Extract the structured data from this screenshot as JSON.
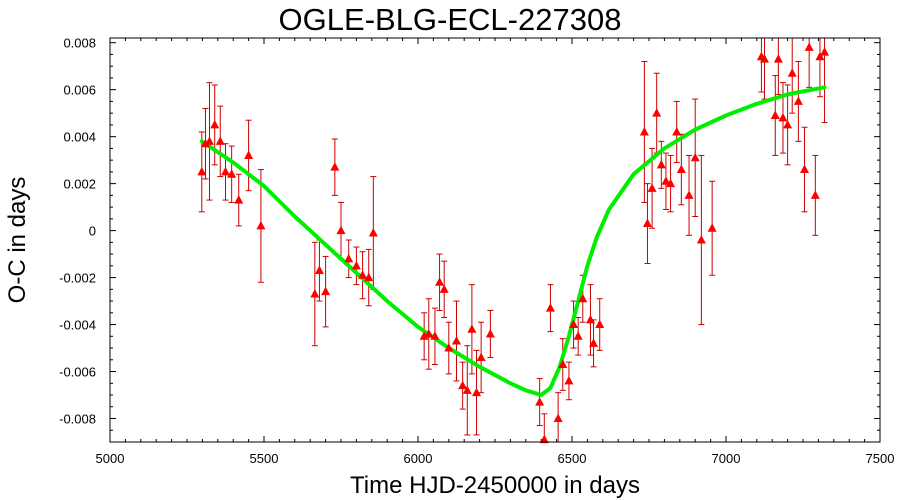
{
  "chart_data": {
    "type": "scatter",
    "title": "OGLE-BLG-ECL-227308",
    "xlabel": "Time HJD-2450000 in days",
    "ylabel": "O-C in days",
    "xlim": [
      5000,
      7500
    ],
    "ylim": [
      -0.009,
      0.0082
    ],
    "x_ticks": [
      5000,
      5500,
      6000,
      6500,
      7000,
      7500
    ],
    "x_tick_labels": [
      "5000",
      "5500",
      "6000",
      "6500",
      "7000",
      "7500"
    ],
    "y_ticks": [
      -0.008,
      -0.006,
      -0.004,
      -0.002,
      0,
      0.002,
      0.004,
      0.006,
      0.008
    ],
    "y_tick_labels": [
      "-0.008",
      "-0.006",
      "-0.004",
      "-0.002",
      "0",
      "0.002",
      "0.004",
      "0.006",
      "0.008"
    ],
    "grid": false,
    "legend": "none",
    "colors": {
      "points": "#ff0000",
      "errorbars": "#cc0000",
      "fit": "#00ee00",
      "axes": "#000000"
    },
    "series": [
      {
        "kind": "points_with_errorbars",
        "marker": "triangle",
        "x": [
          5298,
          5310,
          5323,
          5340,
          5358,
          5375,
          5395,
          5418,
          5450,
          5490,
          5665,
          5680,
          5700,
          5730,
          5750,
          5775,
          5800,
          5820,
          5840,
          5855,
          6020,
          6035,
          6055,
          6070,
          6085,
          6100,
          6125,
          6145,
          6160,
          6175,
          6190,
          6205,
          6235,
          6395,
          6410,
          6430,
          6455,
          6470,
          6490,
          6505,
          6520,
          6535,
          6560,
          6570,
          6590,
          6735,
          6745,
          6760,
          6775,
          6790,
          6805,
          6820,
          6840,
          6855,
          6880,
          6900,
          6920,
          6955,
          7115,
          7125,
          7160,
          7170,
          7185,
          7200,
          7215,
          7235,
          7255,
          7270,
          7290,
          7305,
          7320
        ],
        "y": [
          0.0025,
          0.0037,
          0.0038,
          0.0045,
          0.0038,
          0.0025,
          0.0024,
          0.0013,
          0.0032,
          0.0002,
          -0.0027,
          -0.0017,
          -0.0026,
          0.0027,
          0.0,
          -0.0012,
          -0.0015,
          -0.0019,
          -0.002,
          -0.0001,
          -0.0045,
          -0.0044,
          -0.0045,
          -0.0022,
          -0.0025,
          -0.005,
          -0.0047,
          -0.0066,
          -0.0068,
          -0.0042,
          -0.0069,
          -0.0054,
          -0.0044,
          -0.0073,
          -0.0089,
          -0.0033,
          -0.008,
          -0.0057,
          -0.0064,
          -0.004,
          -0.0045,
          -0.0029,
          -0.0038,
          -0.0048,
          -0.004,
          0.0042,
          0.0003,
          0.0018,
          0.005,
          0.0028,
          0.0021,
          0.002,
          0.0042,
          0.0026,
          0.0015,
          0.0031,
          -0.0004,
          0.0001,
          0.0074,
          0.0073,
          0.0049,
          0.0073,
          0.0048,
          0.0045,
          0.0067,
          0.0055,
          0.0026,
          0.0078,
          0.0015,
          0.0074,
          0.0076
        ],
        "err": [
          0.0017,
          0.0015,
          0.0025,
          0.0017,
          0.0015,
          0.0012,
          0.0012,
          0.0011,
          0.0015,
          0.0024,
          0.0022,
          0.0013,
          0.0015,
          0.0012,
          0.0012,
          0.0008,
          0.0008,
          0.001,
          0.0012,
          0.0024,
          0.001,
          0.0015,
          0.0012,
          0.0012,
          0.0012,
          0.0011,
          0.0017,
          0.001,
          0.0019,
          0.0019,
          0.0018,
          0.0015,
          0.001,
          0.001,
          0.0011,
          0.001,
          0.0011,
          0.0011,
          0.0008,
          0.001,
          0.0008,
          0.001,
          0.0015,
          0.001,
          0.0011,
          0.003,
          0.0017,
          0.0017,
          0.0017,
          0.001,
          0.0012,
          0.0012,
          0.0013,
          0.0015,
          0.0017,
          0.0025,
          0.0036,
          0.002,
          0.0015,
          0.0017,
          0.0017,
          0.0015,
          0.0015,
          0.0017,
          0.0017,
          0.0017,
          0.0018,
          0.0017,
          0.0017,
          0.0017,
          0.003
        ]
      },
      {
        "kind": "fit_line",
        "x": [
          5298,
          5400,
          5500,
          5600,
          5700,
          5800,
          5900,
          6000,
          6100,
          6200,
          6300,
          6350,
          6400,
          6430,
          6460,
          6490,
          6520,
          6550,
          6580,
          6620,
          6700,
          6800,
          6900,
          7000,
          7100,
          7200,
          7320
        ],
        "y": [
          0.0038,
          0.0029,
          0.0019,
          0.0006,
          -0.0006,
          -0.0018,
          -0.003,
          -0.0041,
          -0.005,
          -0.0058,
          -0.0065,
          -0.0068,
          -0.007,
          -0.0067,
          -0.0058,
          -0.0045,
          -0.003,
          -0.0015,
          -0.0003,
          0.0009,
          0.0024,
          0.0035,
          0.0043,
          0.0049,
          0.0054,
          0.0058,
          0.0061
        ]
      }
    ]
  }
}
